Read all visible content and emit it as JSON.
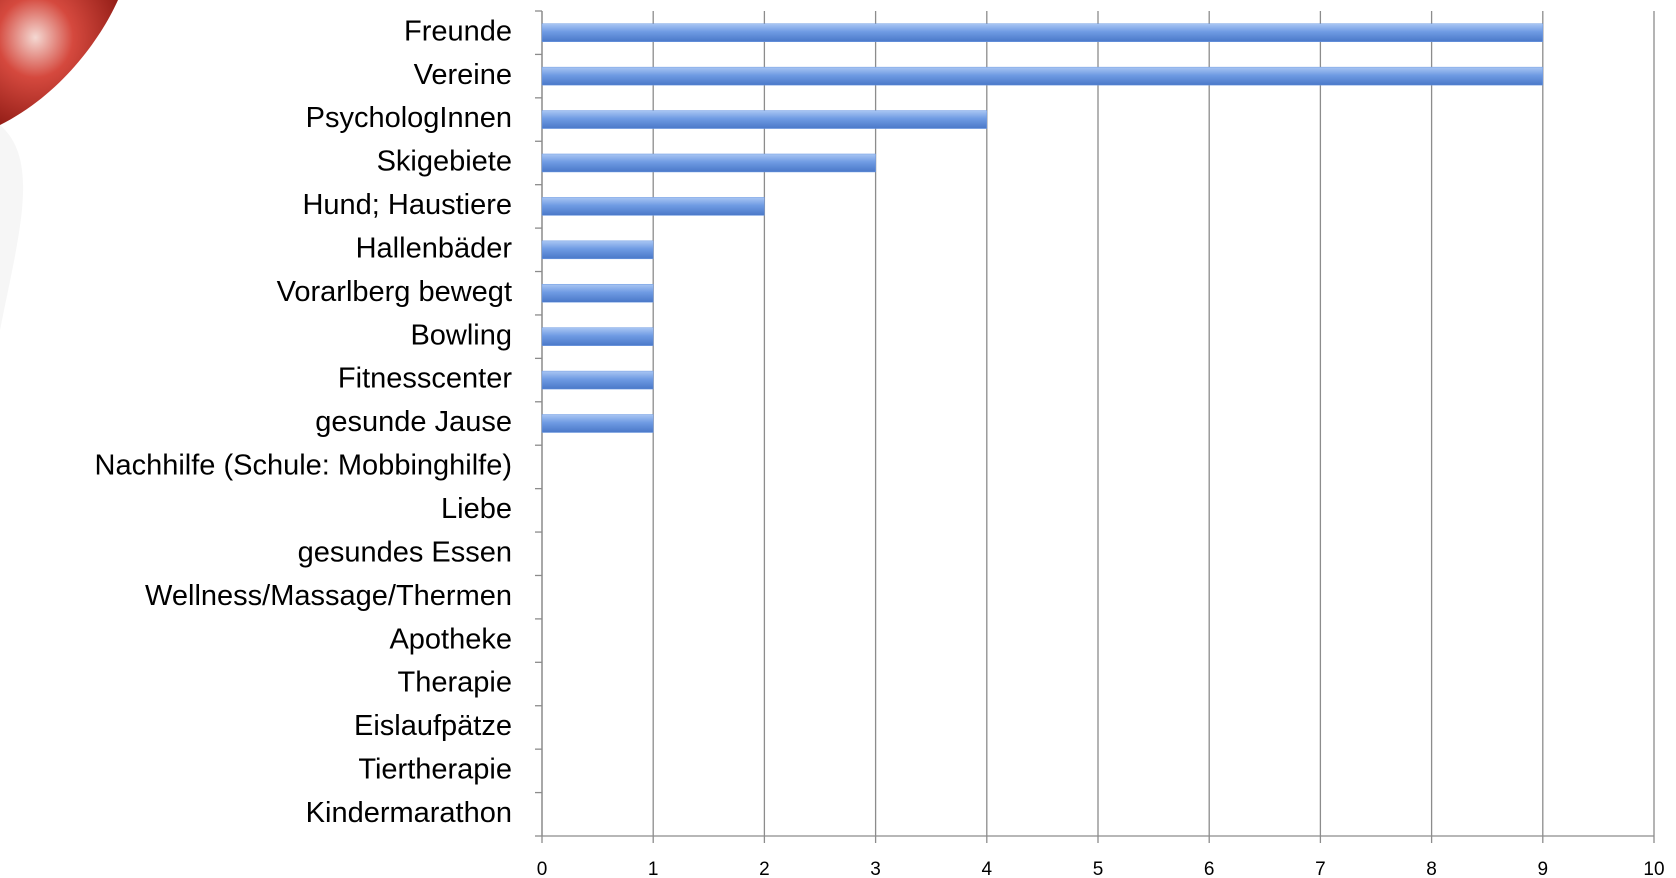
{
  "chart_data": {
    "type": "bar",
    "orientation": "horizontal",
    "categories": [
      "Freunde",
      "Vereine",
      "PsychologInnen",
      "Skigebiete",
      "Hund; Haustiere",
      "Hallenbäder",
      "Vorarlberg bewegt",
      "Bowling",
      "Fitnesscenter",
      "gesunde Jause",
      "Nachhilfe (Schule: Mobbinghilfe)",
      "Liebe",
      "gesundes Essen",
      "Wellness/Massage/Thermen",
      "Apotheke",
      "Therapie",
      "Eislaufpätze",
      "Tiertherapie",
      "Kindermarathon"
    ],
    "values": [
      9,
      9,
      4,
      3,
      2,
      1,
      1,
      1,
      1,
      1,
      0,
      0,
      0,
      0,
      0,
      0,
      0,
      0,
      0
    ],
    "color": "#6f9be3",
    "xlim": [
      0,
      10
    ],
    "xticks": [
      0,
      1,
      2,
      3,
      4,
      5,
      6,
      7,
      8,
      9,
      10
    ],
    "grid": true
  }
}
